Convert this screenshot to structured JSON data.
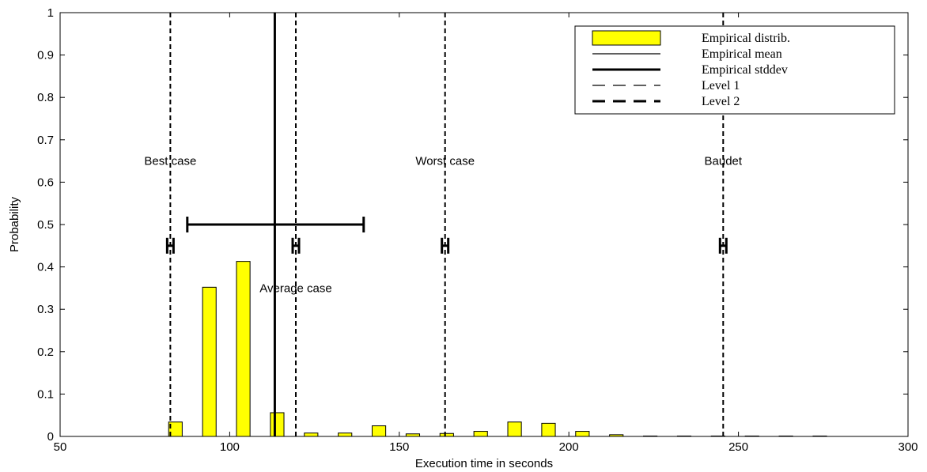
{
  "chart_data": {
    "type": "bar",
    "xlabel": "Execution time in seconds",
    "ylabel": "Probability",
    "xlim": [
      50,
      300
    ],
    "ylim": [
      0,
      1
    ],
    "xticks": [
      50,
      100,
      150,
      200,
      250,
      300
    ],
    "yticks": [
      0,
      0.1,
      0.2,
      0.3,
      0.4,
      0.5,
      0.6,
      0.7,
      0.8,
      0.9,
      1
    ],
    "xtick_labels": [
      "50",
      "100",
      "150",
      "200",
      "250",
      "300"
    ],
    "ytick_labels": [
      "0",
      "0.1",
      "0.2",
      "0.3",
      "0.4",
      "0.5",
      "0.6",
      "0.7",
      "0.8",
      "0.9",
      "1"
    ],
    "bar_color": "#ffff00",
    "bar_width": 4,
    "bars": [
      {
        "x": 84,
        "value": 0.034
      },
      {
        "x": 94,
        "value": 0.352
      },
      {
        "x": 104,
        "value": 0.413
      },
      {
        "x": 114,
        "value": 0.056
      },
      {
        "x": 124,
        "value": 0.008
      },
      {
        "x": 134,
        "value": 0.008
      },
      {
        "x": 144,
        "value": 0.025
      },
      {
        "x": 154,
        "value": 0.006
      },
      {
        "x": 164,
        "value": 0.007
      },
      {
        "x": 174,
        "value": 0.012
      },
      {
        "x": 184,
        "value": 0.034
      },
      {
        "x": 194,
        "value": 0.031
      },
      {
        "x": 204,
        "value": 0.012
      },
      {
        "x": 214,
        "value": 0.004
      },
      {
        "x": 224,
        "value": 0.001
      },
      {
        "x": 234,
        "value": 0.001
      },
      {
        "x": 244,
        "value": 0.001
      },
      {
        "x": 254,
        "value": 0.001
      },
      {
        "x": 264,
        "value": 0.001
      },
      {
        "x": 274,
        "value": 0.001
      }
    ],
    "mean": {
      "x": 113.3
    },
    "stddev": {
      "y": 0.5,
      "from": 87.5,
      "to": 139.5
    },
    "level_lines": [
      {
        "x": 82.5
      },
      {
        "x": 119.5
      },
      {
        "x": 163.5
      },
      {
        "x": 245.5
      }
    ],
    "level_markers": [
      {
        "x": 82.5,
        "y": 0.45
      },
      {
        "x": 119.5,
        "y": 0.45
      },
      {
        "x": 163.5,
        "y": 0.45
      },
      {
        "x": 245.5,
        "y": 0.45
      }
    ],
    "annotations": [
      {
        "text": "Best case",
        "x": 82.5,
        "y": 0.65
      },
      {
        "text": "Worst case",
        "x": 163.5,
        "y": 0.65
      },
      {
        "text": "Baudet",
        "x": 245.5,
        "y": 0.65
      },
      {
        "text": "Average case",
        "x": 119.5,
        "y": 0.35
      }
    ],
    "legend": {
      "position": "top-right",
      "entries": [
        {
          "label": "Empirical distrib.",
          "style": "bar"
        },
        {
          "label": "Empirical mean",
          "style": "thin-solid"
        },
        {
          "label": "Empirical stddev",
          "style": "thick-solid"
        },
        {
          "label": "Level 1",
          "style": "thin-dashed"
        },
        {
          "label": "Level 2",
          "style": "thick-dashed"
        }
      ]
    }
  }
}
